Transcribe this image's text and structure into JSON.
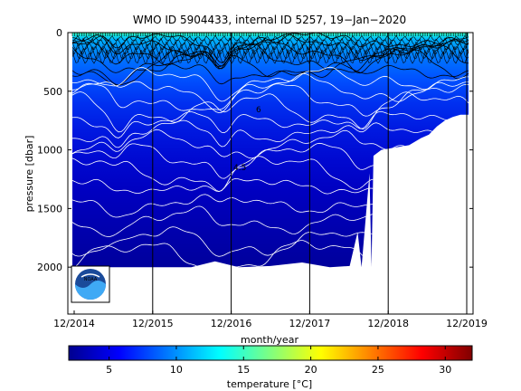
{
  "chart_data": {
    "type": "heatmap",
    "title": "WMO ID 5904433, internal ID 5257, 19−Jan−2020",
    "xlabel": "month/year",
    "ylabel": "pressure [dbar]",
    "x_ticks": [
      "12/2014",
      "12/2015",
      "12/2016",
      "12/2017",
      "12/2018",
      "12/2019"
    ],
    "y_ticks": [
      "0",
      "500",
      "1000",
      "1500",
      "2000"
    ],
    "ylim": [
      0,
      2400
    ],
    "y_reversed": true,
    "colorbar": {
      "label": "temperature [°C]",
      "range": [
        2,
        32
      ],
      "ticks": [
        "5",
        "10",
        "15",
        "20",
        "25",
        "30"
      ],
      "colormap": "jet"
    },
    "contour_labels": [
      "6",
      "4.5"
    ],
    "profile_depth_dbar": [
      [
        0,
        2000
      ],
      [
        0.1,
        2000
      ],
      [
        0.2,
        2000
      ],
      [
        0.3,
        2000
      ],
      [
        0.36,
        1950
      ],
      [
        0.42,
        2000
      ],
      [
        0.5,
        1990
      ],
      [
        0.58,
        1960
      ],
      [
        0.65,
        2000
      ],
      [
        0.7,
        1990
      ],
      [
        0.72,
        1700
      ],
      [
        0.73,
        2000
      ],
      [
        0.75,
        1200
      ],
      [
        0.755,
        2000
      ],
      [
        0.76,
        1050
      ],
      [
        0.78,
        1000
      ],
      [
        0.85,
        960
      ],
      [
        0.88,
        900
      ],
      [
        0.9,
        870
      ],
      [
        0.92,
        800
      ],
      [
        0.94,
        750
      ],
      [
        0.96,
        720
      ],
      [
        0.98,
        700
      ],
      [
        1.0,
        700
      ]
    ],
    "logo": "noaa-logo"
  }
}
